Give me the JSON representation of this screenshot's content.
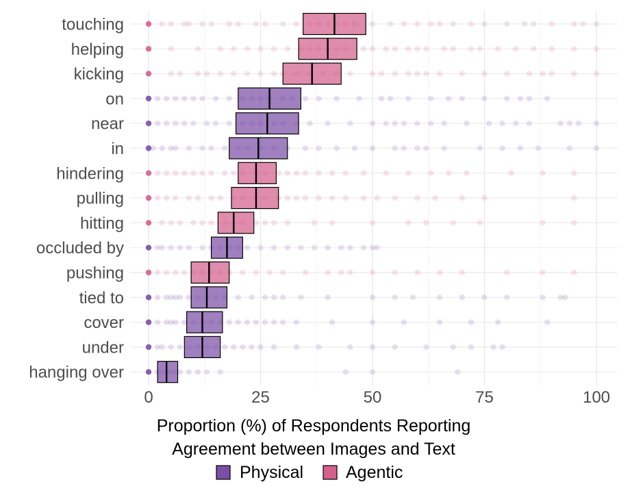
{
  "chart_data": {
    "type": "crossbar-dotplot",
    "title": "",
    "xlabel_lines": [
      "Proportion (%) of Respondents Reporting",
      "Agreement between Images and Text"
    ],
    "ylabel": "",
    "xlim": [
      -4,
      105
    ],
    "x_ticks": [
      0,
      25,
      50,
      75,
      100
    ],
    "x_tick_labels": [
      "0",
      "25",
      "50",
      "75",
      "100"
    ],
    "grid": true,
    "legend_position": "bottom",
    "legend": [
      {
        "key": "Physical",
        "label": "Physical",
        "color": "#7b4fa6"
      },
      {
        "key": "Agentic",
        "label": "Agentic",
        "color": "#d4608c"
      }
    ],
    "colors": {
      "Physical": "#7b4fa6",
      "Agentic": "#d4608c",
      "median_line": "#000000",
      "grid": "#ebebeb"
    },
    "categories": [
      {
        "label": "touching",
        "group": "Agentic",
        "median": 41.5,
        "low": 34.5,
        "high": 48.5,
        "points": [
          0,
          3,
          5,
          8,
          9,
          12,
          14,
          18,
          20,
          24,
          26,
          30,
          33,
          36,
          38,
          40,
          42,
          44,
          46,
          50,
          54,
          57,
          60,
          63,
          65,
          68,
          72,
          75,
          80,
          84,
          86,
          90,
          95,
          97,
          100
        ]
      },
      {
        "label": "helping",
        "group": "Agentic",
        "median": 40,
        "low": 33.5,
        "high": 46.5,
        "points": [
          0,
          5,
          11,
          16,
          19,
          22,
          25,
          28,
          31,
          34,
          36,
          38,
          40,
          42,
          44,
          48,
          50,
          53,
          55,
          58,
          60,
          62,
          66,
          68,
          72,
          74,
          78,
          82,
          86,
          90,
          95,
          100
        ]
      },
      {
        "label": "kicking",
        "group": "Agentic",
        "median": 36.5,
        "low": 30,
        "high": 43,
        "points": [
          0,
          5,
          7,
          11,
          13,
          16,
          19,
          22,
          25,
          28,
          30,
          33,
          36,
          39,
          42,
          45,
          50,
          52,
          55,
          58,
          60,
          62,
          65,
          70,
          75,
          80,
          85,
          88,
          90,
          95,
          100
        ]
      },
      {
        "label": "on",
        "group": "Physical",
        "median": 27,
        "low": 20,
        "high": 34,
        "points": [
          0,
          2,
          4,
          6,
          8,
          10,
          12,
          15,
          18,
          21,
          23,
          25,
          27,
          30,
          32,
          35,
          38,
          42,
          47,
          52,
          54,
          58,
          63,
          67,
          70,
          75,
          80,
          83,
          85,
          89
        ]
      },
      {
        "label": "near",
        "group": "Physical",
        "median": 26.5,
        "low": 19.5,
        "high": 33.5,
        "points": [
          0,
          2,
          4,
          6,
          8,
          10,
          13,
          15,
          18,
          21,
          23,
          25,
          28,
          30,
          33,
          36,
          40,
          45,
          50,
          53,
          55,
          57,
          60,
          63,
          66,
          71,
          76,
          79,
          82,
          85,
          92,
          94,
          96,
          100
        ]
      },
      {
        "label": "in",
        "group": "Physical",
        "median": 24.5,
        "low": 18,
        "high": 31,
        "points": [
          0,
          1,
          3,
          5,
          6,
          9,
          12,
          14,
          17,
          20,
          22,
          25,
          28,
          31,
          35,
          38,
          42,
          46,
          50,
          55,
          57,
          60,
          62,
          66,
          74,
          79,
          83,
          87,
          94,
          100
        ]
      },
      {
        "label": "hindering",
        "group": "Agentic",
        "median": 24,
        "low": 20,
        "high": 28.5,
        "points": [
          0,
          2,
          4,
          6,
          8,
          10,
          12,
          14,
          17,
          19,
          21,
          24,
          26,
          29,
          31,
          33,
          35,
          38,
          41,
          44,
          48,
          53,
          58,
          63,
          67,
          71,
          81,
          88,
          95
        ]
      },
      {
        "label": "pulling",
        "group": "Agentic",
        "median": 24,
        "low": 18.5,
        "high": 29,
        "points": [
          0,
          2,
          4,
          6,
          9,
          11,
          14,
          16,
          19,
          21,
          24,
          26,
          29,
          31,
          33,
          35,
          38,
          41,
          44,
          48,
          51,
          55,
          60,
          64,
          70,
          75,
          95
        ]
      },
      {
        "label": "hitting",
        "group": "Agentic",
        "median": 19,
        "low": 15.5,
        "high": 23.5,
        "points": [
          0,
          3,
          5,
          7,
          10,
          12,
          14,
          17,
          19,
          21,
          24,
          26,
          28,
          31,
          37,
          41,
          50,
          58,
          62,
          68,
          74,
          88,
          95
        ]
      },
      {
        "label": "occluded by",
        "group": "Physical",
        "median": 17.5,
        "low": 14,
        "high": 21,
        "points": [
          0,
          2,
          3,
          5,
          7,
          9,
          12,
          14,
          16,
          18,
          20,
          22,
          25,
          28,
          31,
          34,
          37,
          40,
          43,
          45,
          48,
          50,
          51
        ]
      },
      {
        "label": "pushing",
        "group": "Agentic",
        "median": 13.5,
        "low": 9.5,
        "high": 18,
        "points": [
          0,
          2,
          4,
          6,
          8,
          10,
          12,
          14,
          16,
          18,
          21,
          24,
          27,
          30,
          35,
          40,
          43,
          45,
          50,
          55,
          60,
          65,
          70,
          80,
          88,
          95
        ]
      },
      {
        "label": "tied to",
        "group": "Physical",
        "median": 13,
        "low": 9.5,
        "high": 17.5,
        "points": [
          0,
          2,
          4,
          5,
          6,
          7,
          9,
          11,
          13,
          15,
          17,
          20,
          23,
          26,
          28,
          30,
          34,
          40,
          50,
          55,
          59,
          65,
          70,
          75,
          80,
          88,
          92,
          93
        ]
      },
      {
        "label": "cover",
        "group": "Physical",
        "median": 12,
        "low": 8.5,
        "high": 16.5,
        "points": [
          0,
          2,
          4,
          5,
          6,
          8,
          10,
          12,
          14,
          16,
          18,
          20,
          22,
          24,
          26,
          28,
          30,
          33,
          41,
          50,
          57,
          65,
          72,
          78,
          89
        ]
      },
      {
        "label": "under",
        "group": "Physical",
        "median": 12,
        "low": 8,
        "high": 16,
        "points": [
          0,
          2,
          3,
          5,
          7,
          9,
          11,
          13,
          15,
          17,
          19,
          21,
          23,
          25,
          28,
          33,
          38,
          45,
          50,
          55,
          62,
          68,
          72,
          77,
          79
        ]
      },
      {
        "label": "hanging over",
        "group": "Physical",
        "median": 4,
        "low": 2,
        "high": 6.5,
        "points": [
          0,
          2,
          3,
          4,
          5,
          6,
          7,
          9,
          11,
          13,
          16,
          44,
          50,
          69
        ]
      }
    ]
  }
}
